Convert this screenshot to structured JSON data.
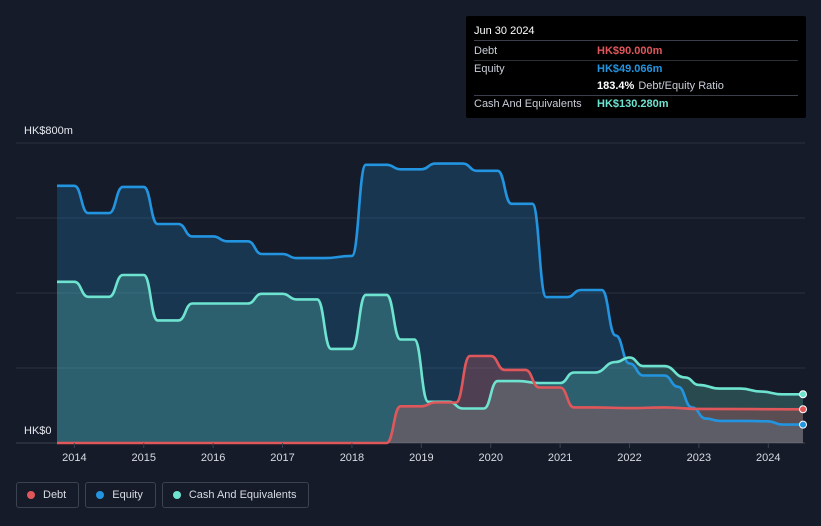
{
  "tooltip": {
    "date": "Jun 30 2024",
    "debt_label": "Debt",
    "debt_value": "HK$90.000m",
    "equity_label": "Equity",
    "equity_value": "HK$49.066m",
    "ratio_value": "183.4%",
    "ratio_label": "Debt/Equity Ratio",
    "cash_label": "Cash And Equivalents",
    "cash_value": "HK$130.280m"
  },
  "legend": [
    {
      "label": "Debt",
      "color": "#e0575b"
    },
    {
      "label": "Equity",
      "color": "#2394df"
    },
    {
      "label": "Cash And Equivalents",
      "color": "#6ee4d0"
    }
  ],
  "chart_data": {
    "type": "area",
    "y_top_label": "HK$800m",
    "y_bottom_label": "HK$0",
    "ylim": [
      0,
      800
    ],
    "xlim": [
      2013.62,
      2024.5
    ],
    "x_ticks": [
      "2014",
      "2015",
      "2016",
      "2017",
      "2018",
      "2019",
      "2020",
      "2021",
      "2022",
      "2023",
      "2024"
    ],
    "grid": true,
    "legend_position": "bottom-left",
    "series": [
      {
        "name": "Equity",
        "color": "#2394df",
        "points": [
          [
            2013.75,
            686
          ],
          [
            2014.0,
            686
          ],
          [
            2014.2,
            613
          ],
          [
            2014.5,
            613
          ],
          [
            2014.7,
            683
          ],
          [
            2015.0,
            683
          ],
          [
            2015.2,
            584
          ],
          [
            2015.5,
            584
          ],
          [
            2015.7,
            551
          ],
          [
            2016.0,
            551
          ],
          [
            2016.2,
            538
          ],
          [
            2016.5,
            538
          ],
          [
            2016.7,
            504
          ],
          [
            2017.0,
            504
          ],
          [
            2017.2,
            493
          ],
          [
            2017.6,
            493
          ],
          [
            2018.0,
            499
          ],
          [
            2018.2,
            742
          ],
          [
            2018.5,
            742
          ],
          [
            2018.7,
            730
          ],
          [
            2019.0,
            730
          ],
          [
            2019.2,
            745
          ],
          [
            2019.6,
            745
          ],
          [
            2019.8,
            726
          ],
          [
            2020.1,
            726
          ],
          [
            2020.3,
            638
          ],
          [
            2020.6,
            638
          ],
          [
            2020.8,
            389
          ],
          [
            2021.1,
            389
          ],
          [
            2021.3,
            408
          ],
          [
            2021.6,
            408
          ],
          [
            2021.8,
            287
          ],
          [
            2022.0,
            212
          ],
          [
            2022.2,
            180
          ],
          [
            2022.5,
            180
          ],
          [
            2022.7,
            150
          ],
          [
            2022.9,
            95
          ],
          [
            2023.1,
            65
          ],
          [
            2023.3,
            59
          ],
          [
            2023.6,
            59
          ],
          [
            2024.0,
            58
          ],
          [
            2024.2,
            49
          ],
          [
            2024.5,
            49
          ]
        ]
      },
      {
        "name": "Cash And Equivalents",
        "color": "#6ee4d0",
        "points": [
          [
            2013.75,
            430
          ],
          [
            2014.0,
            430
          ],
          [
            2014.2,
            390
          ],
          [
            2014.5,
            390
          ],
          [
            2014.7,
            448
          ],
          [
            2015.0,
            448
          ],
          [
            2015.2,
            327
          ],
          [
            2015.5,
            327
          ],
          [
            2015.7,
            372
          ],
          [
            2016.0,
            372
          ],
          [
            2016.5,
            372
          ],
          [
            2016.7,
            398
          ],
          [
            2017.0,
            398
          ],
          [
            2017.2,
            383
          ],
          [
            2017.5,
            383
          ],
          [
            2017.7,
            251
          ],
          [
            2018.0,
            251
          ],
          [
            2018.2,
            395
          ],
          [
            2018.5,
            395
          ],
          [
            2018.7,
            276
          ],
          [
            2018.9,
            276
          ],
          [
            2019.1,
            110
          ],
          [
            2019.4,
            110
          ],
          [
            2019.6,
            92
          ],
          [
            2019.9,
            92
          ],
          [
            2020.1,
            165
          ],
          [
            2020.4,
            165
          ],
          [
            2020.7,
            160
          ],
          [
            2021.0,
            160
          ],
          [
            2021.2,
            188
          ],
          [
            2021.5,
            188
          ],
          [
            2021.8,
            216
          ],
          [
            2022.0,
            228
          ],
          [
            2022.2,
            205
          ],
          [
            2022.5,
            205
          ],
          [
            2022.8,
            175
          ],
          [
            2023.0,
            155
          ],
          [
            2023.3,
            145
          ],
          [
            2023.6,
            145
          ],
          [
            2023.9,
            137
          ],
          [
            2024.2,
            130
          ],
          [
            2024.5,
            130
          ]
        ]
      },
      {
        "name": "Debt",
        "color": "#e0575b",
        "points": [
          [
            2013.75,
            0
          ],
          [
            2018.5,
            0
          ],
          [
            2018.7,
            98
          ],
          [
            2019.0,
            98
          ],
          [
            2019.2,
            108
          ],
          [
            2019.5,
            108
          ],
          [
            2019.7,
            232
          ],
          [
            2020.0,
            232
          ],
          [
            2020.2,
            195
          ],
          [
            2020.5,
            195
          ],
          [
            2020.7,
            148
          ],
          [
            2021.0,
            148
          ],
          [
            2021.2,
            95
          ],
          [
            2021.5,
            95
          ],
          [
            2022.0,
            93
          ],
          [
            2022.5,
            95
          ],
          [
            2023.0,
            91
          ],
          [
            2024.5,
            90
          ]
        ]
      }
    ]
  }
}
